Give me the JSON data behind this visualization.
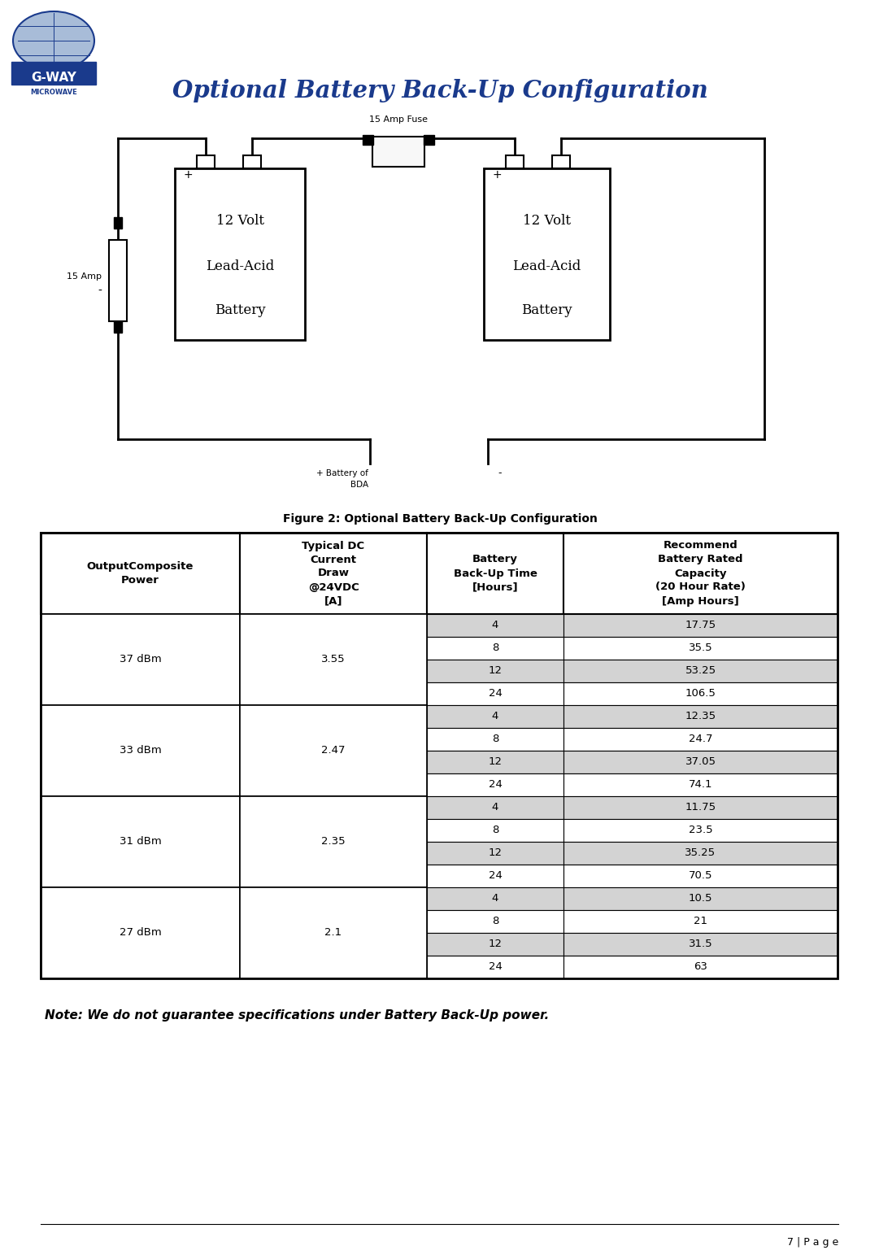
{
  "title": "Optional Battery Back-Up Configuration",
  "title_color": "#1a3a8c",
  "fuse_label": "15 Amp Fuse",
  "figure_caption": "Figure 2: Optional Battery Back-Up Configuration",
  "table_headers": [
    "OutputComposite\nPower",
    "Typical DC\nCurrent\nDraw\n@24VDC\n[A]",
    "Battery\nBack-Up Time\n[Hours]",
    "Recommend\nBattery Rated\nCapacity\n(20 Hour Rate)\n[Amp Hours]"
  ],
  "group_powers": [
    "37 dBm",
    "33 dBm",
    "31 dBm",
    "27 dBm"
  ],
  "group_currents": [
    "3.55",
    "2.47",
    "2.35",
    "2.1"
  ],
  "hours": [
    4,
    8,
    12,
    24
  ],
  "capacities": [
    [
      "17.75",
      "35.5",
      "53.25",
      "106.5"
    ],
    [
      "12.35",
      "24.7",
      "37.05",
      "74.1"
    ],
    [
      "11.75",
      "23.5",
      "35.25",
      "70.5"
    ],
    [
      "10.5",
      "21",
      "31.5",
      "63"
    ]
  ],
  "note_text": "Note: We do not guarantee specifications under Battery Back-Up power.",
  "page_text": "7 | P a g e",
  "bg_color": "#ffffff",
  "line_color": "#000000",
  "row_shaded": "#d3d3d3",
  "row_white": "#ffffff"
}
